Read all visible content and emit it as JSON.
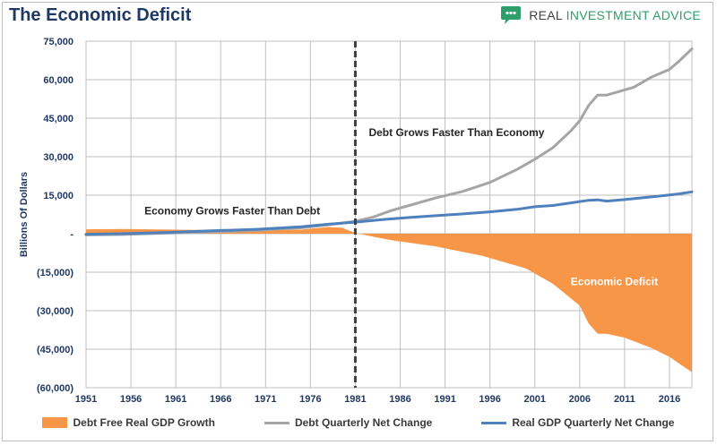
{
  "header": {
    "title": "The Economic Deficit",
    "brand": {
      "part1": "REAL ",
      "part2": "INVESTMENT ADVICE"
    }
  },
  "colors": {
    "title": "#1f3864",
    "gdp_growth_fill": "#f79646",
    "debt_line": "#a5a5a5",
    "gdp_line": "#4f81bd",
    "brand_green": "#2e9e6a",
    "brand_dark": "#404040",
    "axis_text": "#1f3864",
    "grid": "#bfbfbf",
    "divider": "#404040"
  },
  "legend": [
    {
      "label": "Debt Free Real GDP Growth",
      "kind": "box",
      "color": "#f79646"
    },
    {
      "label": "Debt Quarterly Net Change",
      "kind": "line",
      "color": "#a5a5a5"
    },
    {
      "label": "Real GDP Quarterly Net Change",
      "kind": "line",
      "color": "#4f81bd"
    }
  ],
  "chart_data": {
    "type": "line",
    "title": "The Economic Deficit",
    "xlabel": "",
    "ylabel": "Billions Of Dollars",
    "xlim": [
      1951,
      2018.5
    ],
    "ylim": [
      -60000,
      75000
    ],
    "x_ticks": [
      "1951",
      "1956",
      "1961",
      "1966",
      "1971",
      "1976",
      "1981",
      "1986",
      "1991",
      "1996",
      "2001",
      "2006",
      "2011",
      "2016"
    ],
    "y_ticks": [
      75000,
      60000,
      45000,
      30000,
      15000,
      0,
      -15000,
      -30000,
      -45000,
      -60000
    ],
    "y_tick_labels": [
      "75,000",
      "60,000",
      "45,000",
      "30,000",
      "15,000",
      "-",
      "(15,000)",
      "(30,000)",
      "(45,000)",
      "(60,000)"
    ],
    "grid": true,
    "legend_position": "bottom",
    "vertical_marker": {
      "x": 1981,
      "style": "dashed"
    },
    "annotations": [
      {
        "text": "Debt Grows Faster Than Economy",
        "x": 1981.5,
        "y": 38000,
        "color": "#262626"
      },
      {
        "text": "Economy Grows Faster Than Debt",
        "x": 1956.5,
        "y": 7500,
        "color": "#262626"
      },
      {
        "text": "Economic Deficit",
        "x": 2004,
        "y": -20000,
        "color": "#ffffff"
      }
    ],
    "series": [
      {
        "name": "Debt Free Real GDP Growth",
        "kind": "area",
        "x": [
          1951,
          1955,
          1960,
          1965,
          1970,
          1975,
          1978,
          1979.5,
          1981,
          1983,
          1985,
          1990,
          1995,
          2000,
          2003,
          2006,
          2007,
          2008,
          2009,
          2011,
          2014,
          2016,
          2018.5
        ],
        "values": [
          1700,
          1800,
          1600,
          1400,
          1200,
          1600,
          2600,
          2300,
          300,
          -1200,
          -2500,
          -5000,
          -8500,
          -13500,
          -19500,
          -28000,
          -35000,
          -39000,
          -39000,
          -40500,
          -44500,
          -48000,
          -54000
        ]
      },
      {
        "name": "Debt Quarterly Net Change",
        "kind": "line",
        "x": [
          1951,
          1955,
          1960,
          1965,
          1970,
          1975,
          1978,
          1981,
          1983,
          1985,
          1987,
          1990,
          1993,
          1996,
          1999,
          2001,
          2003,
          2005,
          2006,
          2007,
          2008,
          2009,
          2010,
          2012,
          2014,
          2016,
          2017,
          2018.5
        ],
        "values": [
          -500,
          -300,
          200,
          700,
          1300,
          2300,
          3500,
          4800,
          6500,
          9000,
          11000,
          14000,
          16500,
          20000,
          25000,
          29000,
          33500,
          40000,
          44000,
          50000,
          54000,
          54000,
          55000,
          57000,
          61000,
          64000,
          67000,
          72000
        ]
      },
      {
        "name": "Real GDP Quarterly Net Change",
        "kind": "line",
        "x": [
          1951,
          1955,
          1960,
          1965,
          1970,
          1975,
          1978,
          1981,
          1984,
          1987,
          1990,
          1993,
          1996,
          1999,
          2001,
          2003,
          2005,
          2007,
          2008,
          2009,
          2011,
          2013,
          2015,
          2017,
          2018.5
        ],
        "values": [
          -200,
          0,
          500,
          1100,
          1700,
          2700,
          3700,
          4500,
          5500,
          6300,
          7000,
          7700,
          8500,
          9500,
          10500,
          11000,
          12000,
          13000,
          13200,
          12700,
          13300,
          14000,
          14700,
          15500,
          16300
        ]
      }
    ]
  }
}
